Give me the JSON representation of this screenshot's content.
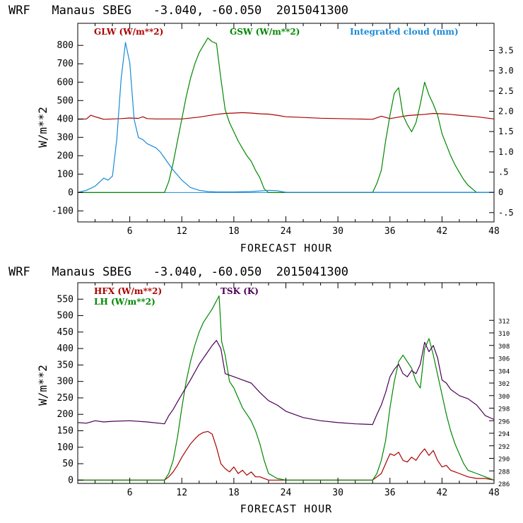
{
  "chart_data": [
    {
      "type": "line",
      "title": "WRF   Manaus SBEG   -3.040, -60.050  2015041300",
      "xlabel": "FORECAST HOUR",
      "ylabel": "W/m**2",
      "xlim": [
        0,
        48
      ],
      "ylim": [
        -160,
        920
      ],
      "y2lim": [
        -0.73,
        4.17
      ],
      "x_ticks": [
        "6",
        "12",
        "18",
        "24",
        "30",
        "36",
        "42",
        "48"
      ],
      "y_ticks": [
        "-100",
        "0",
        "100",
        "200",
        "300",
        "400",
        "500",
        "600",
        "700",
        "800"
      ],
      "y2_ticks": [
        "-.5",
        "0",
        ".5",
        "1.0",
        "1.5",
        "2.0",
        "2.5",
        "3.0",
        "3.5"
      ],
      "series": [
        {
          "name": "GLW (W/m**2)",
          "color": "#aa0000",
          "axis": "left",
          "x": [
            0,
            1,
            1.5,
            2,
            2.5,
            3,
            4,
            5,
            6,
            7,
            7.5,
            8,
            9,
            10,
            12,
            14,
            16,
            17,
            18,
            19,
            20,
            21,
            22,
            23,
            24,
            26,
            28,
            30,
            32,
            34,
            35,
            36,
            37,
            38,
            39,
            40,
            41,
            42,
            43,
            44,
            46,
            48
          ],
          "values": [
            398,
            400,
            420,
            412,
            405,
            398,
            400,
            402,
            405,
            403,
            412,
            402,
            400,
            400,
            400,
            410,
            425,
            430,
            432,
            434,
            432,
            428,
            426,
            420,
            412,
            408,
            404,
            402,
            400,
            398,
            415,
            402,
            410,
            418,
            422,
            425,
            430,
            428,
            425,
            420,
            412,
            400
          ]
        },
        {
          "name": "GSW (W/m**2)",
          "color": "#008800",
          "axis": "left",
          "x": [
            0,
            10,
            10.5,
            11,
            11.5,
            12,
            12.5,
            13,
            13.5,
            14,
            14.5,
            15,
            15.5,
            16,
            16.5,
            17,
            17.5,
            18,
            18.5,
            19,
            19.5,
            20,
            20.5,
            21,
            21.5,
            22,
            22.5,
            34,
            34.5,
            35,
            35.5,
            36,
            36.5,
            37,
            37.5,
            38,
            38.5,
            39,
            39.5,
            40,
            40.5,
            41,
            41.5,
            42,
            42.5,
            43,
            43.5,
            44,
            44.5,
            45,
            45.5,
            46
          ],
          "values": [
            0,
            0,
            60,
            160,
            280,
            400,
            520,
            620,
            700,
            760,
            800,
            840,
            820,
            810,
            620,
            450,
            380,
            330,
            280,
            240,
            200,
            170,
            120,
            80,
            20,
            0,
            0,
            0,
            50,
            120,
            280,
            420,
            540,
            570,
            420,
            370,
            330,
            380,
            480,
            600,
            530,
            480,
            420,
            320,
            260,
            200,
            150,
            110,
            70,
            40,
            20,
            0
          ]
        },
        {
          "name": "Integrated cloud (mm)",
          "color": "#1a8ad8",
          "axis": "right",
          "x": [
            0,
            1,
            2,
            2.5,
            3,
            3.5,
            4,
            4.5,
            5,
            5.5,
            6,
            6.5,
            7,
            7.5,
            8,
            9,
            9.5,
            10,
            10.5,
            11,
            12,
            13,
            14,
            15,
            16,
            18,
            20,
            22,
            23,
            24,
            34,
            48
          ],
          "values": [
            0,
            0.05,
            0.15,
            0.25,
            0.35,
            0.3,
            0.4,
            1.3,
            2.8,
            3.7,
            3.2,
            1.8,
            1.35,
            1.3,
            1.2,
            1.1,
            1.0,
            0.85,
            0.7,
            0.55,
            0.3,
            0.12,
            0.05,
            0.02,
            0.01,
            0.01,
            0.02,
            0.05,
            0.04,
            0,
            0,
            0
          ]
        }
      ]
    },
    {
      "type": "line",
      "title": "WRF   Manaus SBEG   -3.040, -60.050  2015041300",
      "xlabel": "FORECAST HOUR",
      "ylabel": "W/m**2",
      "xlim": [
        0,
        48
      ],
      "ylim": [
        -10,
        600
      ],
      "y2lim": [
        286,
        318
      ],
      "x_ticks": [
        "6",
        "12",
        "18",
        "24",
        "30",
        "36",
        "42",
        "48"
      ],
      "y_ticks": [
        "0",
        "50",
        "100",
        "150",
        "200",
        "250",
        "300",
        "350",
        "400",
        "450",
        "500",
        "550"
      ],
      "y2_ticks": [
        "286",
        "288",
        "290",
        "292",
        "294",
        "296",
        "298",
        "300",
        "302",
        "304",
        "306",
        "308",
        "310",
        "312"
      ],
      "series": [
        {
          "name": "HFX (W/m**2)",
          "color": "#aa0000",
          "axis": "left",
          "x": [
            0,
            10,
            10.5,
            11,
            11.5,
            12,
            12.5,
            13,
            13.5,
            14,
            14.5,
            15,
            15.5,
            16,
            16.5,
            17,
            17.5,
            18,
            18.5,
            19,
            19.5,
            20,
            20.5,
            21,
            22,
            24,
            34,
            34.5,
            35,
            35.5,
            36,
            36.5,
            37,
            37.5,
            38,
            38.5,
            39,
            39.5,
            40,
            40.5,
            41,
            41.5,
            42,
            42.5,
            43,
            43.5,
            44,
            45,
            46,
            47,
            48
          ],
          "values": [
            0,
            0,
            10,
            25,
            45,
            70,
            90,
            110,
            125,
            138,
            145,
            148,
            140,
            100,
            50,
            35,
            25,
            40,
            20,
            30,
            15,
            25,
            10,
            10,
            0,
            0,
            0,
            10,
            20,
            50,
            80,
            75,
            85,
            60,
            55,
            70,
            60,
            80,
            95,
            75,
            90,
            60,
            40,
            45,
            30,
            25,
            20,
            10,
            5,
            5,
            0
          ]
        },
        {
          "name": "LH (W/m**2)",
          "color": "#008800",
          "axis": "left",
          "x": [
            0,
            10,
            10.5,
            11,
            11.5,
            12,
            12.5,
            13,
            13.5,
            14,
            14.5,
            15,
            15.5,
            16,
            16.3,
            16.6,
            17,
            17.5,
            18,
            18.5,
            19,
            19.5,
            20,
            20.5,
            21,
            21.5,
            22,
            23,
            24,
            34,
            34.5,
            35,
            35.5,
            36,
            36.5,
            37,
            37.5,
            38,
            38.5,
            39,
            39.5,
            40,
            40.5,
            41,
            41.5,
            42,
            42.5,
            43,
            43.5,
            44,
            44.5,
            45,
            46,
            47,
            48
          ],
          "values": [
            0,
            0,
            20,
            60,
            130,
            220,
            300,
            360,
            410,
            450,
            480,
            500,
            520,
            545,
            560,
            420,
            380,
            300,
            280,
            250,
            220,
            200,
            180,
            150,
            110,
            60,
            20,
            5,
            0,
            0,
            20,
            60,
            120,
            220,
            300,
            360,
            380,
            360,
            340,
            300,
            280,
            400,
            430,
            380,
            320,
            260,
            200,
            150,
            110,
            80,
            50,
            30,
            20,
            10,
            0
          ]
        },
        {
          "name": "TSK (K)",
          "color": "#4b0055",
          "axis": "right",
          "x": [
            0,
            1,
            2,
            3,
            4,
            6,
            8,
            10,
            10.5,
            11,
            11.5,
            12,
            13,
            14,
            15,
            15.5,
            16,
            16.5,
            17,
            18,
            19,
            20,
            21,
            22,
            23,
            24,
            26,
            28,
            30,
            32,
            34,
            34.5,
            35,
            35.5,
            36,
            36.5,
            37,
            37.5,
            38,
            38.5,
            39,
            39.5,
            40,
            40.5,
            41,
            41.5,
            42,
            42.5,
            43,
            44,
            45,
            46,
            47,
            48
          ],
          "values": [
            295.7,
            295.6,
            296,
            295.8,
            295.9,
            296,
            295.8,
            295.5,
            296.8,
            297.8,
            299,
            300.2,
            302.5,
            305,
            307,
            308,
            308.8,
            307.5,
            303.5,
            303,
            302.5,
            302,
            300.5,
            299.2,
            298.5,
            297.5,
            296.5,
            296,
            295.7,
            295.5,
            295.4,
            297,
            298.5,
            300.5,
            303,
            304.2,
            305,
            303.5,
            303,
            304,
            303.5,
            305,
            308.5,
            307,
            308,
            306,
            302.5,
            302,
            301,
            300,
            299.5,
            298.5,
            296.8,
            296.2
          ]
        }
      ]
    }
  ]
}
